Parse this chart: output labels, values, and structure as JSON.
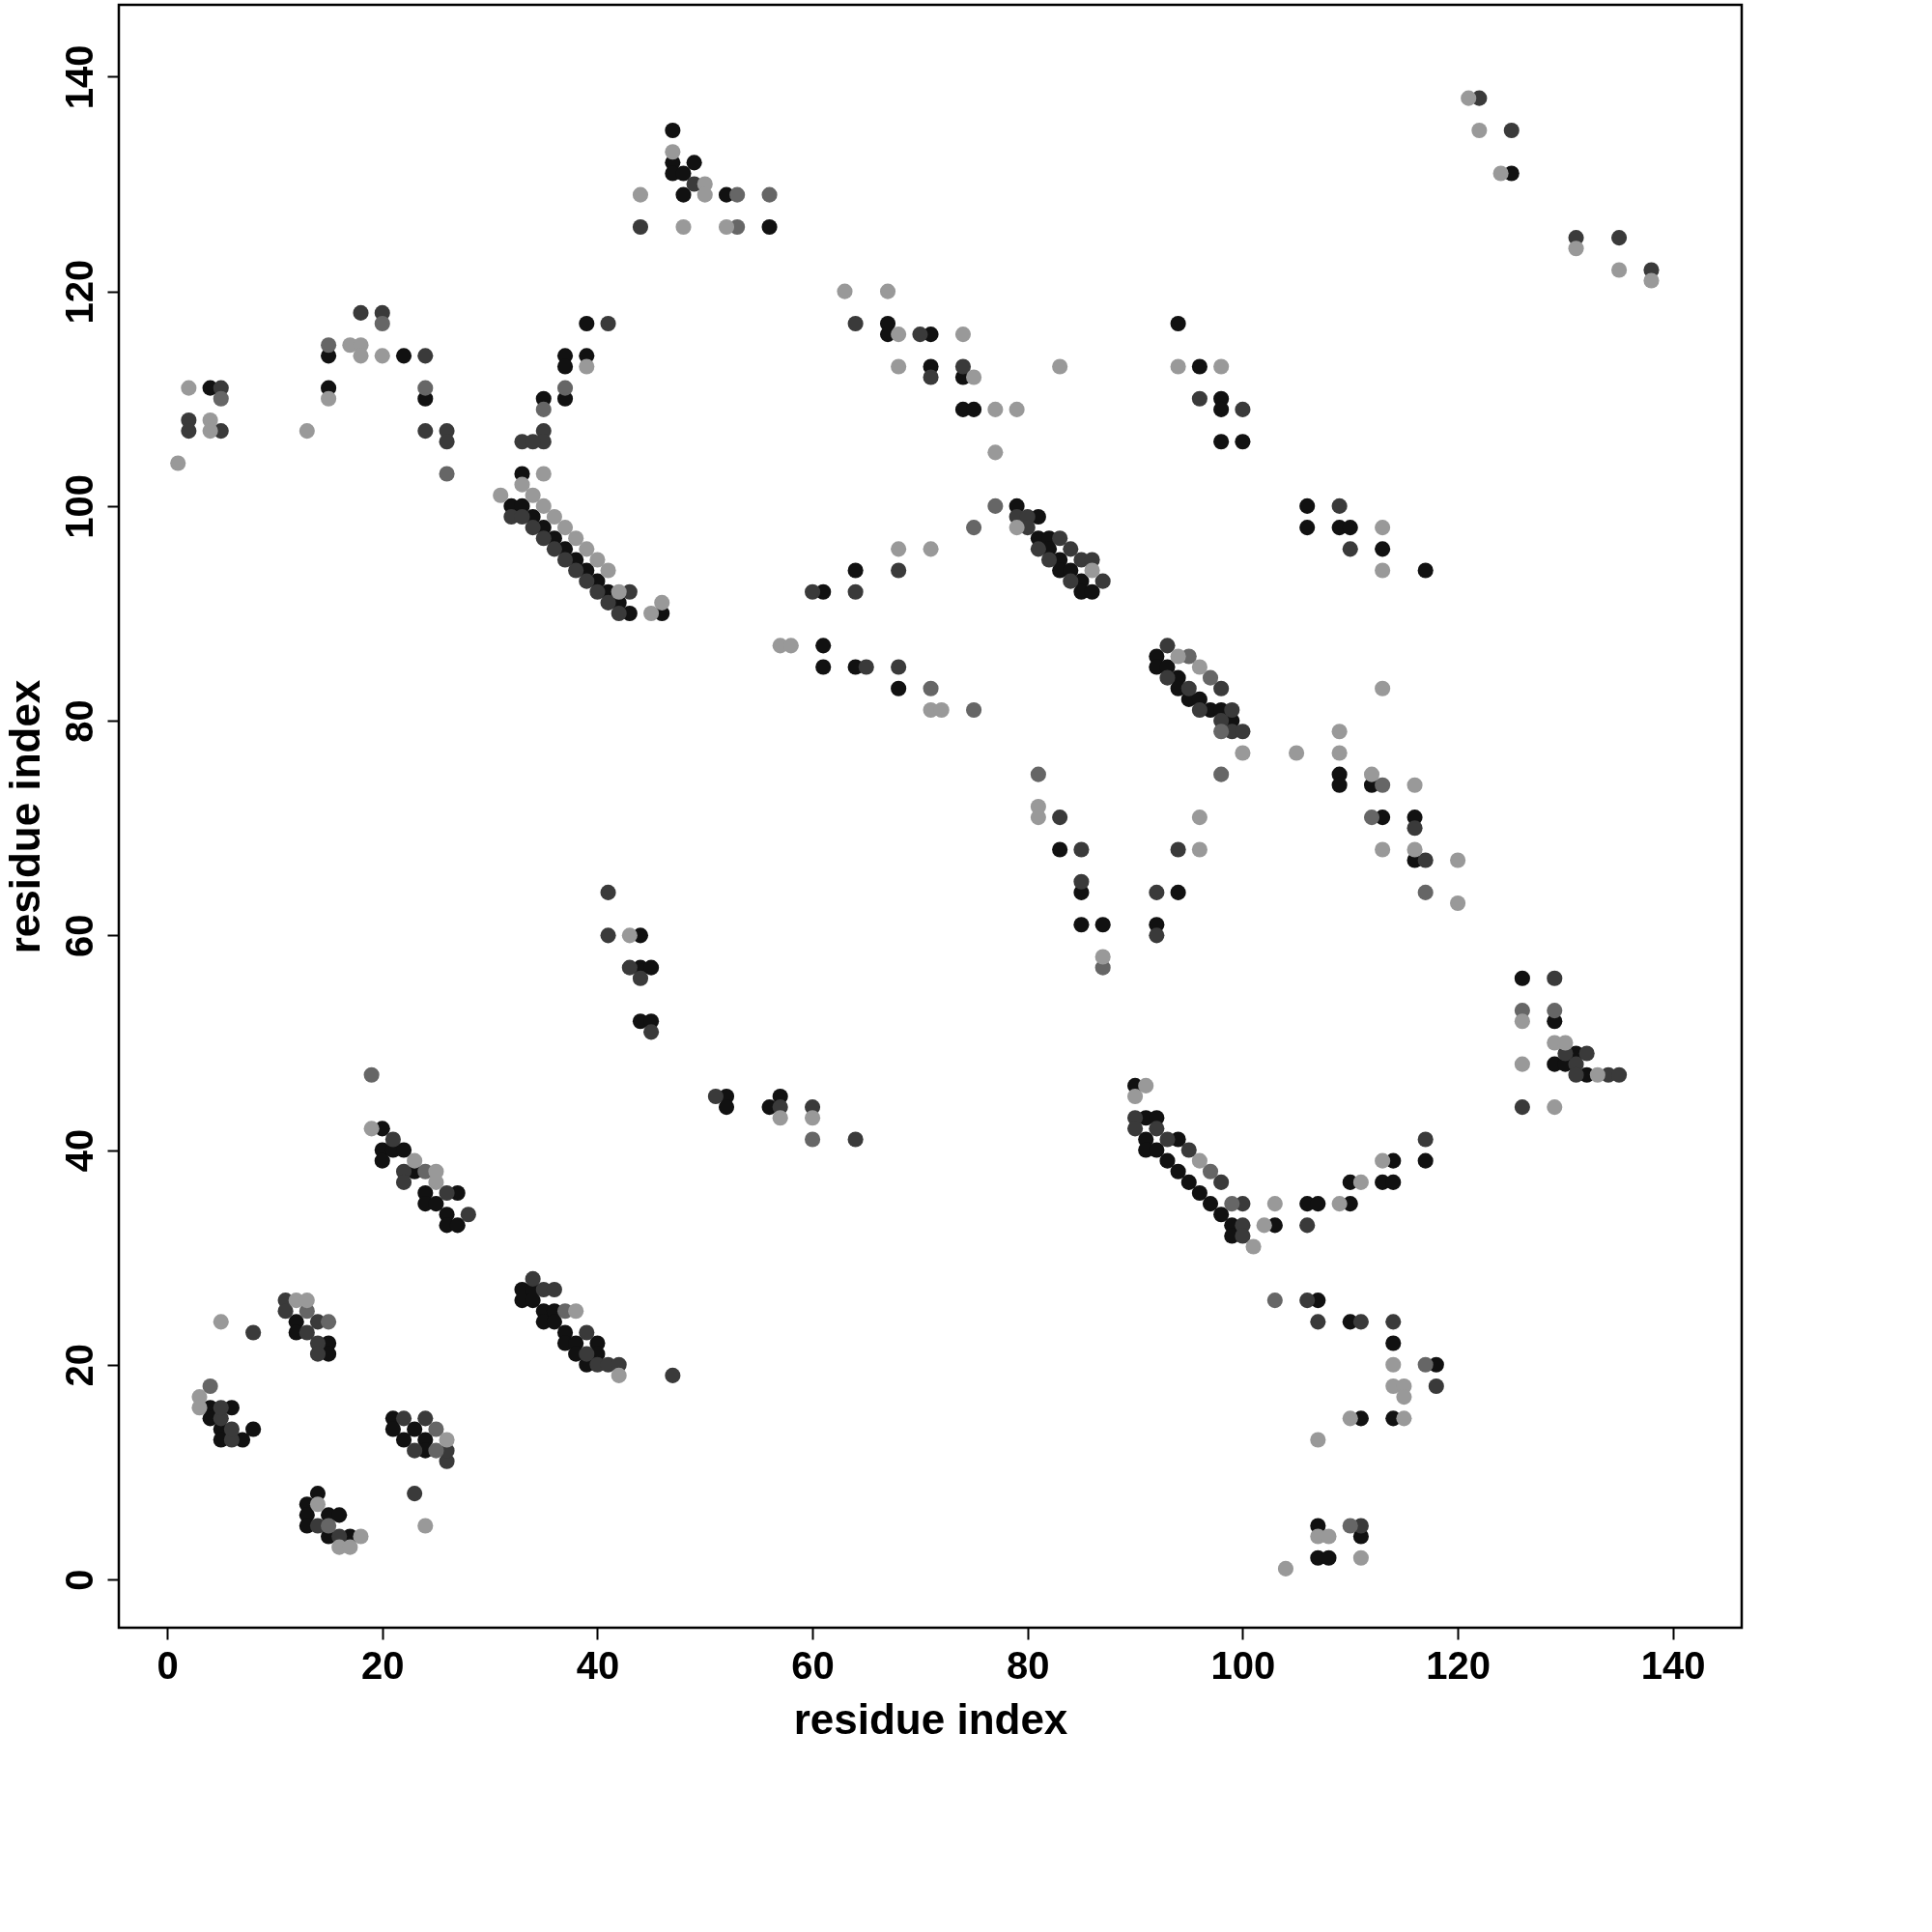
{
  "chart_data": {
    "type": "scatter",
    "xlabel": "residue index",
    "ylabel": "residue index",
    "xlim": [
      -4.5,
      146.4
    ],
    "ylim": [
      -4.5,
      146.7
    ],
    "xticks": [
      0,
      20,
      40,
      60,
      80,
      100,
      120,
      140
    ],
    "yticks": [
      0,
      20,
      40,
      60,
      80,
      100,
      120,
      140
    ],
    "grid": false,
    "marker": "circle",
    "series": [
      {
        "color": "#111111",
        "x": [
          4,
          4,
          4,
          5,
          5,
          6,
          7,
          8,
          12,
          12,
          15,
          15,
          13,
          13,
          13,
          14,
          15,
          15,
          16,
          17,
          21,
          21,
          22,
          23,
          24,
          24,
          20,
          20,
          20,
          21,
          22,
          23,
          24,
          24,
          25,
          26,
          26,
          27,
          27,
          15,
          15,
          22,
          24,
          32,
          33,
          33,
          34,
          35,
          36,
          37,
          38,
          39,
          40,
          41,
          42,
          43,
          46,
          35,
          37,
          37,
          37,
          39,
          39,
          33,
          33,
          34,
          34,
          35,
          35,
          36,
          36,
          37,
          37,
          38,
          38,
          39,
          40,
          40,
          44,
          44,
          45,
          44,
          45,
          52,
          52,
          56,
          57,
          47,
          47,
          47,
          48,
          48,
          49,
          52,
          56,
          61,
          61,
          61,
          64,
          64,
          68,
          67,
          67,
          71,
          71,
          74,
          74,
          75,
          79,
          81,
          81,
          82,
          82,
          83,
          83,
          84,
          85,
          85,
          86,
          83,
          85,
          85,
          87,
          92,
          94,
          92,
          92,
          93,
          94,
          94,
          95,
          96,
          97,
          98,
          99,
          94,
          96,
          98,
          98,
          98,
          100,
          106,
          106,
          109,
          110,
          113,
          117,
          109,
          109,
          112,
          113,
          116,
          116,
          90,
          91,
          91,
          91,
          92,
          92,
          93,
          94,
          94,
          95,
          96,
          97,
          98,
          99,
          99,
          103,
          106,
          107,
          110,
          110,
          113,
          114,
          114,
          117,
          107,
          110,
          114,
          114,
          118,
          111,
          107,
          107,
          108,
          111,
          125,
          126,
          129,
          129,
          130,
          131,
          132
        ],
        "values": [
          111,
          16,
          15,
          14,
          13,
          16,
          13,
          14,
          24,
          23,
          22,
          21,
          7,
          6,
          5,
          8,
          6,
          4,
          6,
          4,
          15,
          14,
          13,
          14,
          13,
          12,
          42,
          40,
          39,
          40,
          40,
          38,
          36,
          35,
          35,
          34,
          33,
          36,
          33,
          114,
          111,
          114,
          110,
          100,
          103,
          100,
          99,
          98,
          97,
          96,
          95,
          94,
          93,
          92,
          91,
          90,
          90,
          110,
          114,
          113,
          110,
          117,
          114,
          27,
          26,
          27,
          26,
          25,
          24,
          25,
          24,
          23,
          22,
          22,
          21,
          20,
          22,
          21,
          60,
          57,
          57,
          52,
          52,
          45,
          44,
          44,
          45,
          135,
          132,
          131,
          131,
          129,
          132,
          129,
          126,
          92,
          87,
          85,
          94,
          85,
          83,
          117,
          116,
          116,
          113,
          112,
          109,
          109,
          100,
          99,
          97,
          97,
          96,
          95,
          94,
          94,
          93,
          92,
          92,
          68,
          64,
          61,
          61,
          61,
          64,
          86,
          85,
          85,
          84,
          83,
          82,
          82,
          81,
          81,
          80,
          117,
          113,
          110,
          109,
          106,
          106,
          100,
          98,
          98,
          98,
          96,
          94,
          75,
          74,
          74,
          71,
          71,
          67,
          46,
          43,
          41,
          40,
          43,
          40,
          39,
          41,
          38,
          37,
          36,
          35,
          34,
          33,
          32,
          33,
          35,
          35,
          37,
          35,
          37,
          39,
          37,
          39,
          26,
          24,
          22,
          15,
          20,
          15,
          5,
          2,
          2,
          4,
          131,
          56,
          52,
          48,
          48,
          49,
          47
        ]
      },
      {
        "color": "#3a3a3a",
        "x": [
          2,
          2,
          5,
          5,
          5,
          5,
          6,
          6,
          8,
          11,
          11,
          13,
          14,
          14,
          14,
          14,
          16,
          22,
          23,
          23,
          24,
          26,
          26,
          21,
          22,
          22,
          26,
          28,
          18,
          20,
          24,
          24,
          26,
          26,
          32,
          33,
          33,
          34,
          35,
          36,
          37,
          38,
          39,
          40,
          41,
          42,
          43,
          35,
          35,
          34,
          41,
          34,
          35,
          36,
          39,
          39,
          40,
          41,
          42,
          47,
          41,
          41,
          43,
          44,
          45,
          51,
          57,
          60,
          64,
          44,
          49,
          60,
          64,
          65,
          68,
          68,
          64,
          70,
          71,
          74,
          79,
          80,
          80,
          81,
          82,
          83,
          84,
          84,
          85,
          86,
          87,
          83,
          85,
          85,
          92,
          92,
          94,
          93,
          93,
          95,
          96,
          98,
          98,
          99,
          99,
          100,
          96,
          100,
          109,
          110,
          116,
          117,
          90,
          90,
          92,
          93,
          95,
          98,
          100,
          100,
          100,
          106,
          117,
          106,
          107,
          111,
          114,
          118,
          111,
          122,
          125,
          131,
          135,
          138,
          126,
          129,
          130,
          131,
          131,
          132,
          134,
          135
        ],
        "values": [
          108,
          107,
          111,
          107,
          15,
          16,
          13,
          14,
          23,
          26,
          25,
          23,
          24,
          22,
          21,
          5,
          4,
          15,
          12,
          8,
          15,
          11,
          12,
          41,
          38,
          37,
          36,
          34,
          118,
          118,
          114,
          107,
          107,
          106,
          99,
          106,
          99,
          98,
          97,
          96,
          95,
          94,
          93,
          92,
          91,
          90,
          92,
          107,
          106,
          106,
          117,
          28,
          27,
          27,
          23,
          21,
          20,
          20,
          20,
          19,
          64,
          60,
          57,
          56,
          51,
          45,
          44,
          44,
          41,
          126,
          130,
          92,
          92,
          85,
          85,
          94,
          117,
          116,
          112,
          113,
          99,
          99,
          98,
          96,
          95,
          97,
          96,
          93,
          95,
          95,
          93,
          71,
          68,
          65,
          64,
          60,
          68,
          87,
          84,
          83,
          81,
          83,
          80,
          81,
          79,
          79,
          110,
          109,
          100,
          96,
          70,
          67,
          43,
          42,
          42,
          41,
          40,
          37,
          35,
          33,
          32,
          33,
          41,
          26,
          24,
          24,
          24,
          18,
          5,
          138,
          135,
          125,
          125,
          122,
          44,
          56,
          49,
          48,
          47,
          49,
          47,
          47
        ]
      },
      {
        "color": "#666666",
        "x": [
          4,
          5,
          13,
          15,
          15,
          25,
          25,
          24,
          24,
          15,
          19,
          20,
          26,
          35,
          37,
          37,
          53,
          53,
          56,
          60,
          77,
          71,
          75,
          75,
          81,
          87,
          95,
          97,
          98,
          98,
          112,
          113,
          117,
          97,
          99,
          103,
          117,
          110,
          126,
          129
        ],
        "values": [
          18,
          110,
          25,
          24,
          5,
          14,
          12,
          38,
          111,
          115,
          47,
          117,
          103,
          109,
          111,
          25,
          129,
          126,
          129,
          41,
          100,
          83,
          81,
          98,
          75,
          57,
          86,
          84,
          79,
          75,
          71,
          74,
          64,
          38,
          35,
          26,
          20,
          5,
          53,
          53
        ]
      },
      {
        "color": "#999999",
        "x": [
          1,
          2,
          4,
          4,
          3,
          3,
          5,
          12,
          13,
          14,
          16,
          17,
          18,
          24,
          26,
          19,
          23,
          25,
          25,
          13,
          15,
          17,
          18,
          18,
          20,
          31,
          33,
          35,
          34,
          35,
          36,
          37,
          38,
          39,
          40,
          41,
          42,
          45,
          46,
          39,
          38,
          42,
          43,
          57,
          60,
          44,
          47,
          48,
          50,
          50,
          52,
          57,
          58,
          68,
          71,
          71,
          72,
          63,
          67,
          68,
          68,
          74,
          75,
          77,
          77,
          79,
          83,
          79,
          86,
          81,
          81,
          87,
          96,
          96,
          94,
          96,
          100,
          94,
          98,
          105,
          113,
          113,
          109,
          109,
          112,
          113,
          113,
          116,
          116,
          120,
          120,
          90,
          91,
          96,
          101,
          102,
          103,
          109,
          111,
          113,
          114,
          114,
          115,
          115,
          115,
          110,
          107,
          104,
          107,
          108,
          111,
          121,
          122,
          124,
          131,
          135,
          138,
          126,
          126,
          129,
          129,
          130,
          133
        ],
        "values": [
          104,
          111,
          108,
          107,
          17,
          16,
          24,
          26,
          26,
          7,
          3,
          3,
          4,
          5,
          13,
          42,
          39,
          37,
          38,
          107,
          110,
          115,
          115,
          114,
          114,
          101,
          102,
          103,
          101,
          100,
          99,
          98,
          97,
          96,
          95,
          94,
          92,
          90,
          91,
          113,
          25,
          19,
          60,
          43,
          43,
          129,
          133,
          126,
          130,
          129,
          126,
          87,
          87,
          96,
          96,
          81,
          81,
          120,
          120,
          116,
          113,
          116,
          112,
          109,
          105,
          109,
          113,
          98,
          94,
          72,
          71,
          58,
          71,
          68,
          86,
          85,
          77,
          113,
          113,
          77,
          98,
          94,
          79,
          77,
          75,
          68,
          83,
          74,
          68,
          67,
          63,
          45,
          46,
          39,
          31,
          33,
          35,
          35,
          37,
          39,
          20,
          18,
          18,
          17,
          15,
          15,
          13,
          1,
          4,
          4,
          2,
          138,
          135,
          131,
          124,
          122,
          121,
          52,
          48,
          50,
          44,
          50,
          47
        ]
      }
    ]
  }
}
